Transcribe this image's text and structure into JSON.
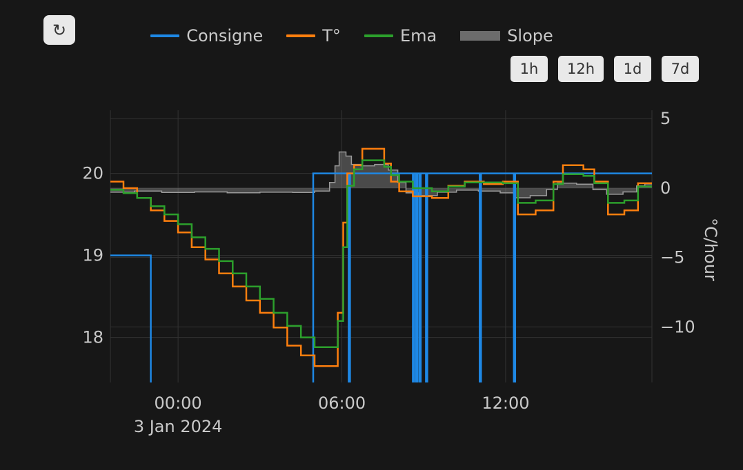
{
  "colors": {
    "background": "#171717",
    "text": "#c9c9c9",
    "grid": "#333333",
    "button_bg": "#e9e9e9",
    "button_text": "#333333",
    "consigne": "#1e88e5",
    "temperature": "#ff7f0e",
    "ema": "#2ca02c",
    "slope_line": "#9a9a9a",
    "slope_fill": "#8a8a8a"
  },
  "refresh_button": {
    "icon": "↻"
  },
  "range_buttons": [
    "1h",
    "12h",
    "1d",
    "7d"
  ],
  "chart_data": {
    "type": "line",
    "title": "",
    "x_axis": {
      "range": [
        -2.48,
        17.36
      ],
      "ticks": [
        {
          "t": 0,
          "label": "00:00"
        },
        {
          "t": 6,
          "label": "06:00"
        },
        {
          "t": 12,
          "label": "12:00"
        }
      ],
      "date_label": "3 Jan 2024"
    },
    "y_left": {
      "range": [
        17.45,
        20.77
      ],
      "unit": "°C",
      "ticks": [
        {
          "v": 20,
          "label": "20"
        },
        {
          "v": 19,
          "label": "19"
        },
        {
          "v": 18,
          "label": "18"
        }
      ]
    },
    "y_right": {
      "range": [
        -14.0,
        5.6
      ],
      "title": "°C/hour",
      "ticks": [
        {
          "v": 5,
          "label": "5"
        },
        {
          "v": 0,
          "label": "0"
        },
        {
          "v": -5,
          "label": "−5"
        },
        {
          "v": -10,
          "label": "−10"
        }
      ]
    },
    "series": [
      {
        "name": "Consigne",
        "type": "step",
        "axis": "left",
        "color": "#1e88e5",
        "width": 2.5,
        "points": [
          [
            -2.48,
            19
          ],
          [
            -1.0,
            16.5
          ],
          [
            4.95,
            20
          ],
          [
            6.25,
            16.5
          ],
          [
            6.3,
            20
          ],
          [
            8.6,
            16.5
          ],
          [
            8.65,
            20
          ],
          [
            8.72,
            16.5
          ],
          [
            8.77,
            20
          ],
          [
            8.84,
            16.5
          ],
          [
            8.89,
            20
          ],
          [
            9.08,
            16.5
          ],
          [
            9.13,
            20
          ],
          [
            11.05,
            16.5
          ],
          [
            11.1,
            20
          ],
          [
            12.3,
            16.5
          ],
          [
            12.35,
            20
          ]
        ]
      },
      {
        "name": "T°",
        "type": "step",
        "axis": "left",
        "color": "#ff7f0e",
        "width": 2.5,
        "points": [
          [
            -2.48,
            19.9
          ],
          [
            -2.0,
            19.82
          ],
          [
            -1.5,
            19.7
          ],
          [
            -1.0,
            19.55
          ],
          [
            -0.5,
            19.42
          ],
          [
            0,
            19.28
          ],
          [
            0.5,
            19.1
          ],
          [
            1,
            18.95
          ],
          [
            1.5,
            18.78
          ],
          [
            2,
            18.62
          ],
          [
            2.5,
            18.45
          ],
          [
            3,
            18.3
          ],
          [
            3.5,
            18.12
          ],
          [
            4,
            17.9
          ],
          [
            4.5,
            17.78
          ],
          [
            5,
            17.65
          ],
          [
            5.85,
            18.3
          ],
          [
            6.05,
            19.4
          ],
          [
            6.2,
            20.0
          ],
          [
            6.45,
            20.1
          ],
          [
            6.75,
            20.3
          ],
          [
            7.55,
            20.12
          ],
          [
            7.8,
            19.9
          ],
          [
            8.1,
            19.78
          ],
          [
            8.6,
            19.72
          ],
          [
            9.3,
            19.7
          ],
          [
            9.9,
            19.85
          ],
          [
            10.5,
            19.9
          ],
          [
            11.2,
            19.87
          ],
          [
            11.9,
            19.9
          ],
          [
            12.45,
            19.5
          ],
          [
            13.1,
            19.55
          ],
          [
            13.75,
            19.9
          ],
          [
            14.1,
            20.1
          ],
          [
            14.85,
            20.05
          ],
          [
            15.25,
            19.9
          ],
          [
            15.75,
            19.5
          ],
          [
            16.35,
            19.55
          ],
          [
            16.85,
            19.88
          ]
        ]
      },
      {
        "name": "Ema",
        "type": "step",
        "axis": "left",
        "color": "#2ca02c",
        "width": 2.5,
        "points": [
          [
            -2.48,
            19.8
          ],
          [
            -2.0,
            19.76
          ],
          [
            -1.5,
            19.7
          ],
          [
            -1.0,
            19.6
          ],
          [
            -0.5,
            19.5
          ],
          [
            0,
            19.38
          ],
          [
            0.5,
            19.22
          ],
          [
            1,
            19.08
          ],
          [
            1.5,
            18.93
          ],
          [
            2,
            18.78
          ],
          [
            2.5,
            18.62
          ],
          [
            3,
            18.47
          ],
          [
            3.5,
            18.3
          ],
          [
            4,
            18.14
          ],
          [
            4.5,
            18.0
          ],
          [
            5,
            17.88
          ],
          [
            5.85,
            18.2
          ],
          [
            6.05,
            19.1
          ],
          [
            6.2,
            19.85
          ],
          [
            6.45,
            20.05
          ],
          [
            6.75,
            20.16
          ],
          [
            7.55,
            20.08
          ],
          [
            7.8,
            19.98
          ],
          [
            8.1,
            19.9
          ],
          [
            8.6,
            19.82
          ],
          [
            9.3,
            19.78
          ],
          [
            9.9,
            19.84
          ],
          [
            10.5,
            19.89
          ],
          [
            11.2,
            19.89
          ],
          [
            11.9,
            19.88
          ],
          [
            12.45,
            19.64
          ],
          [
            13.1,
            19.67
          ],
          [
            13.75,
            19.87
          ],
          [
            14.1,
            19.99
          ],
          [
            14.85,
            19.97
          ],
          [
            15.25,
            19.88
          ],
          [
            15.75,
            19.64
          ],
          [
            16.35,
            19.67
          ],
          [
            16.85,
            19.84
          ]
        ]
      },
      {
        "name": "Slope",
        "type": "step-area",
        "axis": "right",
        "color": "#9a9a9a",
        "fill": "#8a8a8a",
        "fill_opacity": 0.45,
        "width": 1.5,
        "points": [
          [
            -2.48,
            -0.3
          ],
          [
            -1.6,
            -0.22
          ],
          [
            -0.6,
            -0.32
          ],
          [
            0.6,
            -0.28
          ],
          [
            1.8,
            -0.34
          ],
          [
            3.0,
            -0.3
          ],
          [
            4.2,
            -0.32
          ],
          [
            5.0,
            -0.22
          ],
          [
            5.55,
            0.4
          ],
          [
            5.75,
            1.6
          ],
          [
            5.9,
            2.6
          ],
          [
            6.15,
            2.3
          ],
          [
            6.35,
            1.7
          ],
          [
            6.7,
            1.6
          ],
          [
            7.2,
            1.7
          ],
          [
            7.7,
            1.3
          ],
          [
            8.05,
            0.4
          ],
          [
            8.35,
            -0.35
          ],
          [
            8.8,
            -0.55
          ],
          [
            9.5,
            -0.3
          ],
          [
            10.2,
            -0.15
          ],
          [
            11.0,
            -0.22
          ],
          [
            11.8,
            -0.35
          ],
          [
            12.3,
            -0.7
          ],
          [
            12.9,
            -0.55
          ],
          [
            13.5,
            -0.1
          ],
          [
            13.9,
            0.35
          ],
          [
            14.6,
            0.28
          ],
          [
            15.2,
            -0.12
          ],
          [
            15.7,
            -0.45
          ],
          [
            16.3,
            -0.28
          ],
          [
            16.8,
            0.15
          ],
          [
            17.1,
            0.3
          ]
        ]
      }
    ]
  }
}
